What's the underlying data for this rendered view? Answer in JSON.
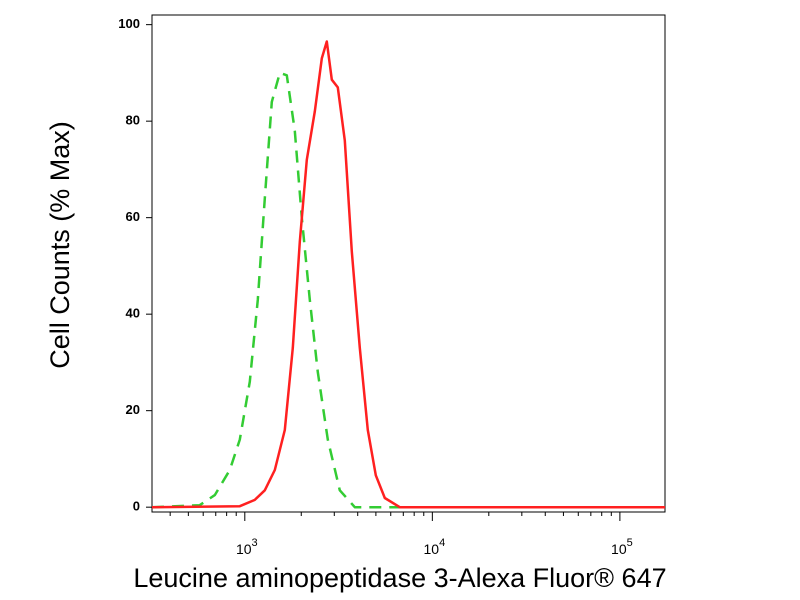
{
  "chart_data": {
    "type": "line",
    "x_label": "Leucine aminopeptidase 3-Alexa Fluor® 647",
    "y_label": "Cell Counts (% Max)",
    "x_scale": "log",
    "xlim": [
      320,
      174000
    ],
    "ylim": [
      -1,
      102
    ],
    "xticks": [
      {
        "value": 1000,
        "label": "10",
        "exponent": "3"
      },
      {
        "value": 10000,
        "label": "10",
        "exponent": "4"
      },
      {
        "value": 100000,
        "label": "10",
        "exponent": "5"
      }
    ],
    "yticks": [
      0,
      20,
      40,
      60,
      80,
      100
    ],
    "series": [
      {
        "color": "#33cc33",
        "dashed": true,
        "x": [
          320,
          575,
          692,
          832,
          940,
          1063,
          1173,
          1279,
          1393,
          1537,
          1675,
          1848,
          2014,
          2222,
          2450,
          2771,
          3212,
          3861,
          5248,
          174000
        ],
        "values": [
          0,
          0.4,
          2.5,
          7.7,
          14,
          26,
          43,
          64,
          84,
          90,
          89.5,
          78,
          60,
          43,
          28,
          14,
          3.5,
          0,
          0,
          0
        ]
      },
      {
        "color": "#ff2020",
        "dashed": false,
        "x": [
          320,
          940,
          1131,
          1279,
          1445,
          1634,
          1803,
          1965,
          2141,
          2362,
          2574,
          2737,
          2911,
          3133,
          3415,
          3722,
          4105,
          4529,
          4996,
          5580,
          6709,
          174000
        ],
        "values": [
          0,
          0.2,
          1.5,
          3.5,
          7.7,
          16,
          33,
          55,
          72,
          82,
          93,
          96.5,
          88.6,
          87,
          76,
          53,
          33,
          16,
          6.6,
          1.9,
          0,
          0
        ]
      }
    ]
  }
}
